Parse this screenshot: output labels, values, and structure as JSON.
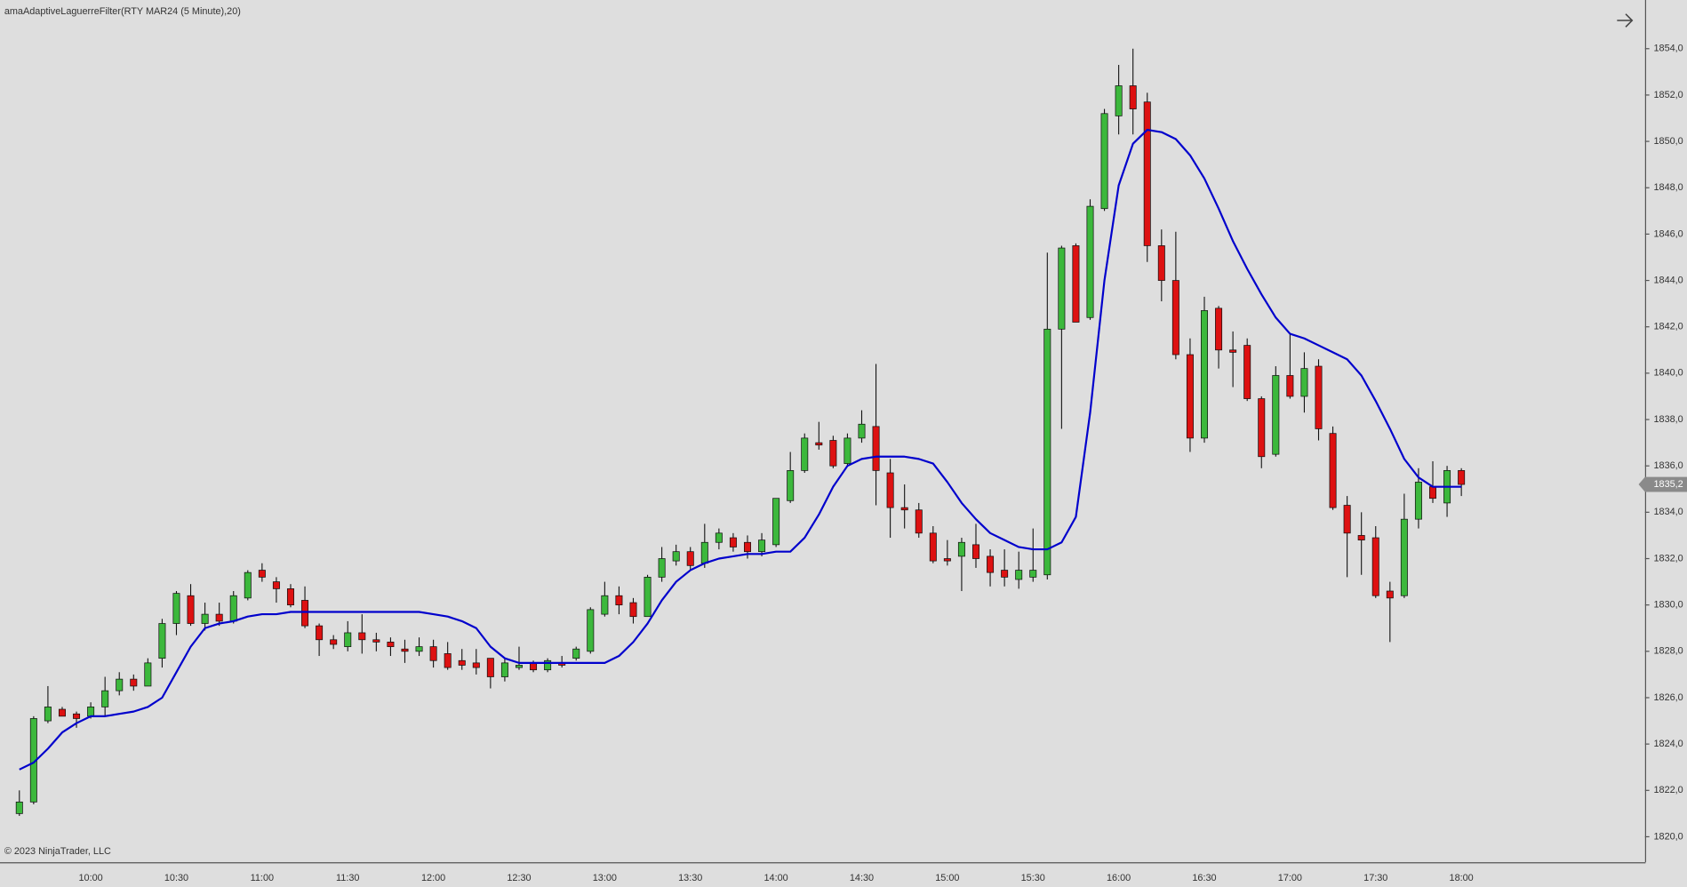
{
  "chart_data": {
    "type": "candlestick",
    "title": "amaAdaptiveLaguerreFilter(RTY MAR24 (5 Minute),20)",
    "copyright": "© 2023 NinjaTrader, LLC",
    "categories": [
      null,
      null,
      null,
      null,
      null,
      "10:00",
      null,
      null,
      null,
      null,
      null,
      "10:30",
      null,
      null,
      null,
      null,
      null,
      "11:00",
      null,
      null,
      null,
      null,
      null,
      "11:30",
      null,
      null,
      null,
      null,
      null,
      "12:00",
      null,
      null,
      null,
      null,
      null,
      "12:30",
      null,
      null,
      null,
      null,
      null,
      "13:00",
      null,
      null,
      null,
      null,
      null,
      "13:30",
      null,
      null,
      null,
      null,
      null,
      "14:00",
      null,
      null,
      null,
      null,
      null,
      "14:30",
      null,
      null,
      null,
      null,
      null,
      "15:00",
      null,
      null,
      null,
      null,
      null,
      "15:30",
      null,
      null,
      null,
      null,
      null,
      "16:00",
      null,
      null,
      null,
      null,
      null,
      "16:30",
      null,
      null,
      null,
      null,
      null,
      "17:00",
      null,
      null,
      null,
      null,
      null,
      "17:30",
      null,
      null,
      null,
      null,
      null,
      "18:00"
    ],
    "candles": {
      "up_color": "#3cb83c",
      "down_color": "#dd1111",
      "open": [
        1821.0,
        1821.5,
        1825.0,
        1825.5,
        1825.3,
        1825.2,
        1825.6,
        1826.3,
        1826.8,
        1826.5,
        1827.7,
        1829.2,
        1830.4,
        1829.2,
        1829.6,
        1829.3,
        1830.3,
        1831.5,
        1831.0,
        1830.7,
        1830.2,
        1829.1,
        1828.5,
        1828.2,
        1828.8,
        1828.5,
        1828.4,
        1828.1,
        1828.0,
        1828.2,
        1827.9,
        1827.6,
        1827.5,
        1827.7,
        1826.9,
        1827.3,
        1827.5,
        1827.2,
        1827.5,
        1827.7,
        1828.0,
        1829.6,
        1830.4,
        1830.1,
        1829.5,
        1831.2,
        1831.9,
        1832.3,
        1831.8,
        1832.7,
        1832.9,
        1832.7,
        1832.3,
        1832.6,
        1834.5,
        1835.8,
        1837.0,
        1837.1,
        1836.1,
        1837.2,
        1837.7,
        1835.7,
        1834.2,
        1834.1,
        1833.1,
        1832.0,
        1832.1,
        1832.6,
        1832.1,
        1831.5,
        1831.1,
        1831.2,
        1831.3,
        1841.9,
        1845.5,
        1842.4,
        1847.1,
        1851.1,
        1852.4,
        1851.7,
        1845.5,
        1844.0,
        1840.8,
        1837.2,
        1842.8,
        1841.0,
        1841.2,
        1838.9,
        1836.5,
        1839.9,
        1839.0,
        1840.3,
        1837.4,
        1834.3,
        1833.0,
        1832.9,
        1830.6,
        1830.4,
        1833.7,
        1835.1,
        1834.4,
        1835.8
      ],
      "high": [
        1822.0,
        1825.2,
        1826.5,
        1825.6,
        1825.4,
        1825.8,
        1826.9,
        1827.1,
        1827.0,
        1827.7,
        1829.4,
        1830.6,
        1830.9,
        1830.1,
        1830.1,
        1830.6,
        1831.5,
        1831.8,
        1831.2,
        1830.9,
        1830.8,
        1829.2,
        1828.7,
        1829.3,
        1829.6,
        1828.8,
        1828.6,
        1828.5,
        1828.6,
        1828.5,
        1828.4,
        1828.1,
        1828.1,
        1827.7,
        1827.7,
        1828.2,
        1827.6,
        1827.7,
        1827.8,
        1828.2,
        1829.9,
        1831.0,
        1830.8,
        1830.3,
        1831.3,
        1832.5,
        1832.6,
        1832.5,
        1833.5,
        1833.3,
        1833.1,
        1833.0,
        1833.1,
        1834.6,
        1836.6,
        1837.4,
        1837.9,
        1837.3,
        1837.4,
        1838.4,
        1840.4,
        1836.3,
        1835.2,
        1834.4,
        1833.4,
        1832.8,
        1832.9,
        1833.5,
        1832.4,
        1832.4,
        1832.3,
        1833.3,
        1845.2,
        1845.5,
        1845.6,
        1847.5,
        1851.4,
        1853.3,
        1854.0,
        1852.1,
        1846.2,
        1846.1,
        1841.5,
        1843.3,
        1842.9,
        1841.8,
        1841.5,
        1839.0,
        1840.3,
        1841.7,
        1840.9,
        1840.6,
        1837.7,
        1834.7,
        1834.0,
        1833.4,
        1831.0,
        1834.8,
        1835.9,
        1836.2,
        1836.0,
        1835.9
      ],
      "low": [
        1820.9,
        1821.4,
        1824.9,
        1825.2,
        1824.7,
        1825.1,
        1825.2,
        1826.1,
        1826.3,
        1826.5,
        1827.3,
        1828.7,
        1829.1,
        1828.9,
        1829.1,
        1829.2,
        1830.2,
        1831.0,
        1830.1,
        1829.9,
        1829.0,
        1827.8,
        1828.1,
        1828.0,
        1827.9,
        1828.0,
        1827.8,
        1827.5,
        1827.8,
        1827.3,
        1827.2,
        1827.2,
        1827.0,
        1826.4,
        1826.7,
        1827.2,
        1827.1,
        1827.1,
        1827.3,
        1827.6,
        1827.9,
        1829.5,
        1829.6,
        1829.2,
        1829.5,
        1831.0,
        1831.7,
        1831.5,
        1831.6,
        1832.4,
        1832.3,
        1832.0,
        1832.1,
        1832.5,
        1834.4,
        1835.7,
        1836.7,
        1835.9,
        1836.0,
        1837.0,
        1834.3,
        1832.9,
        1833.3,
        1832.9,
        1831.8,
        1831.7,
        1830.6,
        1831.6,
        1830.8,
        1830.8,
        1830.7,
        1831.0,
        1831.1,
        1837.6,
        1842.2,
        1842.3,
        1847.0,
        1850.3,
        1850.3,
        1844.8,
        1843.1,
        1840.6,
        1836.6,
        1837.0,
        1840.2,
        1839.4,
        1838.8,
        1835.9,
        1836.4,
        1838.9,
        1838.3,
        1837.1,
        1834.1,
        1831.2,
        1831.3,
        1830.3,
        1828.4,
        1830.3,
        1833.3,
        1834.4,
        1833.8,
        1834.7
      ],
      "close": [
        1821.5,
        1825.1,
        1825.6,
        1825.2,
        1825.1,
        1825.6,
        1826.3,
        1826.8,
        1826.5,
        1827.5,
        1829.2,
        1830.5,
        1829.2,
        1829.6,
        1829.3,
        1830.4,
        1831.4,
        1831.2,
        1830.7,
        1830.0,
        1829.1,
        1828.5,
        1828.3,
        1828.8,
        1828.5,
        1828.4,
        1828.2,
        1828.0,
        1828.2,
        1827.6,
        1827.3,
        1827.4,
        1827.3,
        1826.9,
        1827.5,
        1827.4,
        1827.2,
        1827.6,
        1827.4,
        1828.1,
        1829.8,
        1830.4,
        1830.0,
        1829.5,
        1831.2,
        1832.0,
        1832.3,
        1831.7,
        1832.7,
        1833.1,
        1832.5,
        1832.3,
        1832.8,
        1834.6,
        1835.8,
        1837.2,
        1836.9,
        1836.0,
        1837.2,
        1837.8,
        1835.8,
        1834.2,
        1834.1,
        1833.1,
        1831.9,
        1831.9,
        1832.7,
        1832.0,
        1831.4,
        1831.2,
        1831.5,
        1831.5,
        1841.9,
        1845.4,
        1842.2,
        1847.2,
        1851.2,
        1852.4,
        1851.4,
        1845.5,
        1844.0,
        1840.8,
        1837.2,
        1842.7,
        1841.0,
        1840.9,
        1838.9,
        1836.4,
        1839.9,
        1839.0,
        1840.2,
        1837.6,
        1834.2,
        1833.1,
        1832.8,
        1830.4,
        1830.3,
        1833.7,
        1835.3,
        1834.6,
        1835.8,
        1835.2
      ]
    },
    "indicator": {
      "color": "#0000cc",
      "values": [
        1822.9,
        1823.2,
        1823.8,
        1824.5,
        1824.9,
        1825.2,
        1825.2,
        1825.3,
        1825.4,
        1825.6,
        1826.0,
        1827.1,
        1828.2,
        1829.0,
        1829.2,
        1829.3,
        1829.5,
        1829.6,
        1829.6,
        1829.7,
        1829.7,
        1829.7,
        1829.7,
        1829.7,
        1829.7,
        1829.7,
        1829.7,
        1829.7,
        1829.7,
        1829.6,
        1829.5,
        1829.3,
        1829.0,
        1828.2,
        1827.7,
        1827.5,
        1827.5,
        1827.5,
        1827.5,
        1827.5,
        1827.5,
        1827.5,
        1827.8,
        1828.4,
        1829.2,
        1830.2,
        1831.0,
        1831.5,
        1831.8,
        1832.0,
        1832.1,
        1832.2,
        1832.2,
        1832.3,
        1832.3,
        1832.9,
        1833.9,
        1835.1,
        1836.0,
        1836.3,
        1836.4,
        1836.4,
        1836.4,
        1836.3,
        1836.1,
        1835.3,
        1834.4,
        1833.7,
        1833.1,
        1832.8,
        1832.5,
        1832.4,
        1832.4,
        1832.7,
        1833.8,
        1838.3,
        1844.0,
        1848.1,
        1849.9,
        1850.5,
        1850.4,
        1850.1,
        1849.4,
        1848.4,
        1847.1,
        1845.7,
        1844.5,
        1843.4,
        1842.4,
        1841.7,
        1841.5,
        1841.2,
        1840.9,
        1840.6,
        1839.9,
        1838.8,
        1837.6,
        1836.3,
        1835.5,
        1835.1,
        1835.1,
        1835.1
      ]
    },
    "last_price": {
      "value": 1835.2,
      "label": "1835,2"
    },
    "ylim": [
      1818.9,
      1856.1
    ],
    "yticks": [
      {
        "value": 1820,
        "label": "1820,0"
      },
      {
        "value": 1822,
        "label": "1822,0"
      },
      {
        "value": 1824,
        "label": "1824,0"
      },
      {
        "value": 1826,
        "label": "1826,0"
      },
      {
        "value": 1828,
        "label": "1828,0"
      },
      {
        "value": 1830,
        "label": "1830,0"
      },
      {
        "value": 1832,
        "label": "1832,0"
      },
      {
        "value": 1834,
        "label": "1834,0"
      },
      {
        "value": 1836,
        "label": "1836,0"
      },
      {
        "value": 1838,
        "label": "1838,0"
      },
      {
        "value": 1840,
        "label": "1840,0"
      },
      {
        "value": 1842,
        "label": "1842,0"
      },
      {
        "value": 1844,
        "label": "1844,0"
      },
      {
        "value": 1846,
        "label": "1846,0"
      },
      {
        "value": 1848,
        "label": "1848,0"
      },
      {
        "value": 1850,
        "label": "1850,0"
      },
      {
        "value": 1852,
        "label": "1852,0"
      },
      {
        "value": 1854,
        "label": "1854,0"
      }
    ],
    "grid": false
  }
}
